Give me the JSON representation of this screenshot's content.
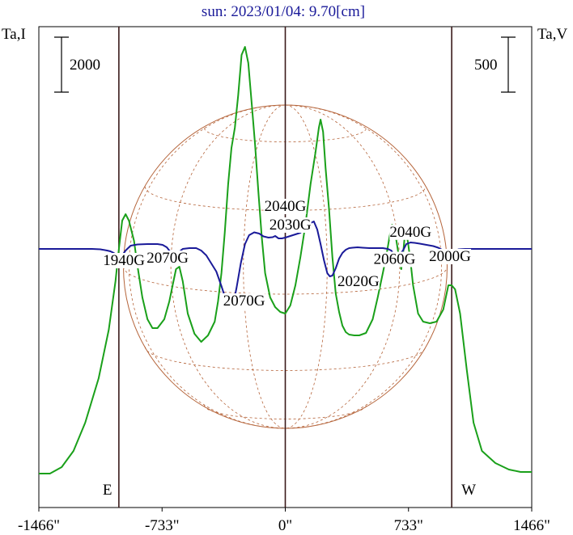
{
  "chart_data": {
    "type": "line",
    "title": "sun: 2023/01/04: 9.70[cm]",
    "left_axis_label": "Ta,I",
    "right_axis_label": "Ta,V",
    "left_scale_bar": "2000",
    "right_scale_bar": "500",
    "x_tick_labels": [
      "-1466\"",
      "-733\"",
      "0\"",
      "733\"",
      "1466\""
    ],
    "x_ticks": [
      -1466,
      -733,
      0,
      733,
      1466
    ],
    "xlim": [
      -1466,
      1466
    ],
    "limb_markers": [
      {
        "x": -990,
        "label": "E"
      },
      {
        "x": 990,
        "label": "W"
      }
    ],
    "series": [
      {
        "color": "#1aa01a",
        "points": [
          [
            -1466,
            -2780
          ],
          [
            -1400,
            -2780
          ],
          [
            -1330,
            -2700
          ],
          [
            -1260,
            -2500
          ],
          [
            -1190,
            -2150
          ],
          [
            -1110,
            -1600
          ],
          [
            -1050,
            -1000
          ],
          [
            -1010,
            -400
          ],
          [
            -990,
            0
          ],
          [
            -970,
            350
          ],
          [
            -950,
            430
          ],
          [
            -930,
            350
          ],
          [
            -900,
            100
          ],
          [
            -880,
            -200
          ],
          [
            -850,
            -600
          ],
          [
            -820,
            -870
          ],
          [
            -790,
            -980
          ],
          [
            -760,
            -980
          ],
          [
            -720,
            -870
          ],
          [
            -690,
            -650
          ],
          [
            -670,
            -450
          ],
          [
            -650,
            -250
          ],
          [
            -630,
            -220
          ],
          [
            -610,
            -400
          ],
          [
            -580,
            -800
          ],
          [
            -540,
            -1050
          ],
          [
            -500,
            -1150
          ],
          [
            -460,
            -1070
          ],
          [
            -420,
            -900
          ],
          [
            -400,
            -650
          ],
          [
            -380,
            -300
          ],
          [
            -360,
            200
          ],
          [
            -340,
            800
          ],
          [
            -320,
            1250
          ],
          [
            -300,
            1500
          ],
          [
            -280,
            1900
          ],
          [
            -260,
            2400
          ],
          [
            -240,
            2500
          ],
          [
            -220,
            2300
          ],
          [
            -200,
            1800
          ],
          [
            -180,
            1300
          ],
          [
            -160,
            700
          ],
          [
            -140,
            150
          ],
          [
            -120,
            -300
          ],
          [
            -90,
            -600
          ],
          [
            -60,
            -720
          ],
          [
            -30,
            -780
          ],
          [
            0,
            -800
          ],
          [
            30,
            -700
          ],
          [
            60,
            -450
          ],
          [
            90,
            -100
          ],
          [
            120,
            300
          ],
          [
            150,
            800
          ],
          [
            180,
            1200
          ],
          [
            200,
            1500
          ],
          [
            210,
            1600
          ],
          [
            225,
            1450
          ],
          [
            240,
            1000
          ],
          [
            260,
            500
          ],
          [
            280,
            -100
          ],
          [
            300,
            -550
          ],
          [
            320,
            -780
          ],
          [
            340,
            -950
          ],
          [
            360,
            -1030
          ],
          [
            380,
            -1060
          ],
          [
            410,
            -1070
          ],
          [
            440,
            -1070
          ],
          [
            480,
            -1040
          ],
          [
            520,
            -870
          ],
          [
            550,
            -600
          ],
          [
            580,
            -300
          ],
          [
            600,
            -100
          ],
          [
            620,
            150
          ],
          [
            635,
            300
          ],
          [
            650,
            250
          ],
          [
            665,
            50
          ],
          [
            680,
            -150
          ],
          [
            690,
            -250
          ],
          [
            700,
            -80
          ],
          [
            710,
            150
          ],
          [
            720,
            200
          ],
          [
            730,
            80
          ],
          [
            745,
            -150
          ],
          [
            760,
            -450
          ],
          [
            790,
            -800
          ],
          [
            820,
            -900
          ],
          [
            860,
            -920
          ],
          [
            900,
            -900
          ],
          [
            940,
            -750
          ],
          [
            970,
            -450
          ],
          [
            990,
            -450
          ],
          [
            1010,
            -500
          ],
          [
            1040,
            -800
          ],
          [
            1080,
            -1500
          ],
          [
            1120,
            -2150
          ],
          [
            1170,
            -2500
          ],
          [
            1250,
            -2650
          ],
          [
            1330,
            -2730
          ],
          [
            1400,
            -2760
          ],
          [
            1466,
            -2760
          ]
        ]
      },
      {
        "color": "#1a1a99",
        "points": [
          [
            -1466,
            0
          ],
          [
            -1150,
            0
          ],
          [
            -1100,
            -5
          ],
          [
            -1060,
            -20
          ],
          [
            -1040,
            -30
          ],
          [
            -1020,
            -50
          ],
          [
            -1000,
            -90
          ],
          [
            -985,
            -100
          ],
          [
            -970,
            -80
          ],
          [
            -950,
            -20
          ],
          [
            -920,
            40
          ],
          [
            -880,
            55
          ],
          [
            -820,
            60
          ],
          [
            -760,
            60
          ],
          [
            -730,
            50
          ],
          [
            -705,
            20
          ],
          [
            -690,
            -20
          ],
          [
            -675,
            -60
          ],
          [
            -660,
            -75
          ],
          [
            -640,
            -50
          ],
          [
            -610,
            0
          ],
          [
            -570,
            10
          ],
          [
            -530,
            10
          ],
          [
            -500,
            -20
          ],
          [
            -470,
            -80
          ],
          [
            -440,
            -180
          ],
          [
            -410,
            -280
          ],
          [
            -380,
            -460
          ],
          [
            -350,
            -650
          ],
          [
            -325,
            -720
          ],
          [
            -310,
            -690
          ],
          [
            -290,
            -480
          ],
          [
            -265,
            -180
          ],
          [
            -240,
            60
          ],
          [
            -215,
            170
          ],
          [
            -185,
            205
          ],
          [
            -155,
            190
          ],
          [
            -130,
            155
          ],
          [
            -100,
            140
          ],
          [
            -75,
            145
          ],
          [
            -60,
            160
          ],
          [
            -40,
            130
          ],
          [
            -20,
            130
          ],
          [
            0,
            140
          ],
          [
            30,
            160
          ],
          [
            60,
            180
          ],
          [
            90,
            200
          ],
          [
            120,
            260
          ],
          [
            150,
            320
          ],
          [
            170,
            340
          ],
          [
            190,
            240
          ],
          [
            210,
            60
          ],
          [
            230,
            -140
          ],
          [
            250,
            -300
          ],
          [
            265,
            -340
          ],
          [
            280,
            -330
          ],
          [
            300,
            -240
          ],
          [
            320,
            -120
          ],
          [
            340,
            -50
          ],
          [
            360,
            -10
          ],
          [
            380,
            10
          ],
          [
            400,
            15
          ],
          [
            430,
            20
          ],
          [
            460,
            15
          ],
          [
            500,
            10
          ],
          [
            540,
            10
          ],
          [
            580,
            10
          ],
          [
            610,
            0
          ],
          [
            630,
            -20
          ],
          [
            650,
            -75
          ],
          [
            665,
            -90
          ],
          [
            680,
            -70
          ],
          [
            700,
            -20
          ],
          [
            720,
            60
          ],
          [
            745,
            80
          ],
          [
            770,
            75
          ],
          [
            800,
            65
          ],
          [
            840,
            50
          ],
          [
            880,
            35
          ],
          [
            910,
            15
          ],
          [
            940,
            -20
          ],
          [
            960,
            -50
          ],
          [
            980,
            -65
          ],
          [
            1000,
            -35
          ],
          [
            1030,
            -5
          ],
          [
            1070,
            0
          ],
          [
            1466,
            0
          ]
        ]
      }
    ],
    "annotations": [
      {
        "x": 0,
        "y": 480,
        "text": "2040G"
      },
      {
        "x": 30,
        "y": 250,
        "text": "2030G"
      },
      {
        "x": 745,
        "y": 162,
        "text": "2040G"
      },
      {
        "x": -960,
        "y": -190,
        "text": "1940G"
      },
      {
        "x": -700,
        "y": -160,
        "text": "2070G"
      },
      {
        "x": 650,
        "y": -175,
        "text": "2060G"
      },
      {
        "x": 980,
        "y": -140,
        "text": "2000G"
      },
      {
        "x": 435,
        "y": -450,
        "text": "2020G"
      },
      {
        "x": -245,
        "y": -690,
        "text": "2070G"
      }
    ],
    "grid": false
  }
}
